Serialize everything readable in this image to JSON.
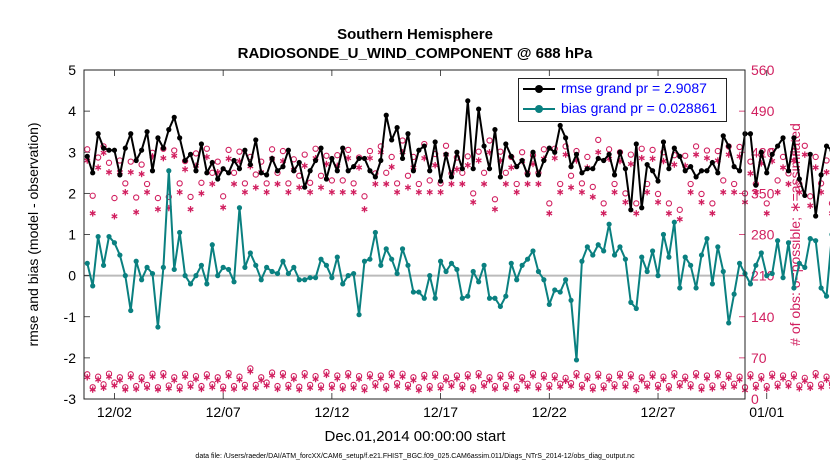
{
  "chart_data": {
    "type": "line",
    "title": "Southern Hemisphere",
    "subtitle": "RADIOSONDE_U_WIND_COMPONENT @ 688 hPa",
    "xlabel": "Dec.01,2014 00:00:00 start",
    "ylabel_left": "rmse and bias (model - observation)",
    "ylabel_right": "# of obs: o=possible; ∗=assimilated",
    "footnote": "data file: /Users/raeder/DAI/ATM_forcXX/CAM6_setup/f.e21.FHIST_BGC.f09_025.CAM6assim.011/Diags_NTrS_2014-12/obs_diag_output.nc",
    "xticks": [
      "12/02",
      "12/07",
      "12/12",
      "12/17",
      "12/22",
      "12/27",
      "01/01"
    ],
    "xlim_days": [
      0.6,
      31.0
    ],
    "ylim_left": [
      -3,
      5
    ],
    "yticks_left": [
      -3,
      -2,
      -1,
      0,
      1,
      2,
      3,
      4,
      5
    ],
    "ylim_right": [
      0,
      560
    ],
    "yticks_right": [
      0,
      70,
      140,
      210,
      280,
      350,
      420,
      490,
      560
    ],
    "step_days": 0.25,
    "start_day": 0.75,
    "colors": {
      "rmse": "#000000",
      "bias": "#0a8080",
      "obs": "#d11f5f",
      "zero": "#bbbbbb",
      "legend_text": "#0000ff"
    },
    "series": [
      {
        "name": "rmse grand pr = 2.9087",
        "values": [
          2.9,
          2.5,
          3.45,
          3.1,
          3.05,
          3.05,
          2.45,
          3.1,
          3.45,
          2.8,
          3.05,
          3.5,
          2.55,
          3.35,
          3.1,
          3.55,
          3.85,
          3.35,
          2.8,
          2.95,
          2.55,
          3.2,
          2.5,
          2.75,
          2.35,
          2.6,
          2.5,
          2.8,
          2.6,
          3.05,
          2.7,
          3.3,
          2.5,
          2.45,
          2.85,
          2.55,
          2.65,
          3.05,
          2.55,
          2.75,
          2.15,
          2.55,
          2.8,
          3.1,
          2.35,
          2.85,
          2.55,
          3.1,
          2.55,
          2.65,
          2.85,
          2.85,
          2.55,
          2.4,
          2.8,
          3.9,
          3.3,
          3.6,
          2.85,
          3.45,
          2.55,
          3.05,
          3.15,
          2.55,
          3.25,
          2.3,
          2.95,
          2.4,
          3.0,
          2.6,
          4.25,
          2.6,
          4.05,
          3.15,
          2.6,
          3.55,
          2.4,
          3.2,
          2.9,
          2.65,
          2.8,
          2.45,
          3.0,
          2.45,
          2.8,
          3.1,
          3.0,
          3.65,
          3.35,
          2.65,
          2.95,
          2.5,
          2.6,
          2.6,
          2.85,
          2.8,
          2.95,
          2.45,
          3.0,
          2.6,
          1.6,
          3.2,
          1.65,
          2.7,
          2.55,
          2.3,
          3.25,
          2.6,
          3.1,
          2.9,
          2.55,
          2.65,
          2.4,
          2.55,
          2.55,
          2.75,
          2.5,
          3.4,
          3.15,
          2.65,
          2.55,
          3.45,
          3.45,
          2.2,
          3.0,
          2.5,
          2.95,
          3.15,
          3.35,
          2.55,
          3.35,
          2.35,
          1.95,
          2.95,
          1.45,
          2.45,
          3.15,
          3.05,
          2.2,
          2.55,
          2.9,
          2.45,
          2.55,
          2.25,
          2.8,
          2.45,
          2.65,
          2.45,
          2.2,
          2.85,
          2.65,
          2.8,
          3.25,
          2.4,
          3.6,
          2.9,
          2.5,
          2.9,
          2.15
        ]
      },
      {
        "name": "bias grand pr = 0.028861",
        "values": [
          0.3,
          -0.25,
          0.95,
          0.25,
          0.95,
          0.8,
          0.5,
          0.0,
          -0.85,
          0.35,
          -0.1,
          0.2,
          0.05,
          -1.25,
          0.2,
          2.55,
          0.15,
          1.05,
          0.0,
          -0.2,
          0.0,
          0.25,
          -0.2,
          0.75,
          0.0,
          0.2,
          0.15,
          -0.15,
          1.65,
          0.2,
          0.55,
          0.25,
          -0.1,
          0.2,
          0.1,
          0.05,
          0.35,
          0.05,
          0.2,
          -0.1,
          -0.1,
          -0.05,
          -0.05,
          0.4,
          0.25,
          -0.05,
          0.45,
          -0.2,
          0.0,
          0.05,
          -0.95,
          0.35,
          0.4,
          1.05,
          0.25,
          0.65,
          0.4,
          0.05,
          0.65,
          0.25,
          -0.4,
          -0.4,
          -0.55,
          0.0,
          -0.55,
          0.35,
          0.1,
          0.3,
          0.15,
          -0.55,
          -0.5,
          0.1,
          -0.15,
          0.25,
          -0.55,
          -0.55,
          -0.75,
          -0.5,
          0.3,
          -0.1,
          0.25,
          0.4,
          0.6,
          0.1,
          -0.1,
          -0.7,
          -0.35,
          -0.4,
          -0.1,
          -0.6,
          -2.05,
          0.35,
          0.7,
          0.5,
          0.75,
          0.6,
          1.25,
          0.5,
          0.7,
          0.4,
          -0.65,
          -0.8,
          0.45,
          0.1,
          0.6,
          0.0,
          1.0,
          0.45,
          1.3,
          -0.3,
          0.45,
          0.25,
          -0.3,
          0.5,
          0.9,
          -0.2,
          0.7,
          0.1,
          -1.15,
          -0.45,
          0.3,
          0.05,
          -0.2,
          0.25,
          0.55,
          0.0,
          0.05,
          0.85,
          -0.05,
          0.8,
          -0.3,
          0.3,
          0.2,
          0.9,
          0.85,
          -0.3,
          -0.5,
          1.0,
          0.15,
          0.2,
          0.1,
          -0.65,
          0.05,
          0.05,
          0.15,
          0.95,
          0.95,
          -0.3,
          0.1,
          0.2,
          -0.3,
          -0.05,
          0.85,
          0.05,
          -0.1,
          0.15,
          0.2,
          -0.45,
          -1.8,
          0.0,
          0.65,
          -1.6
        ]
      },
      {
        "name": "possible obs",
        "values": [
          425,
          346,
          411,
          430,
          402,
          342,
          406,
          367,
          404,
          343,
          399,
          366,
          419,
          342,
          426,
          344,
          423,
          367,
          405,
          344,
          418,
          368,
          426,
          385,
          404,
          345,
          424,
          385,
          421,
          367,
          412,
          382,
          404,
          367,
          425,
          385,
          422,
          367,
          408,
          380,
          416,
          368,
          426,
          380,
          414,
          372,
          415,
          372,
          424,
          367,
          411,
          345,
          422,
          384,
          430,
          385,
          412,
          367,
          440,
          380,
          412,
          366,
          434,
          372,
          417,
          367,
          431,
          384,
          411,
          385,
          413,
          350,
          421,
          385,
          440,
          340,
          421,
          385,
          412,
          366,
          420,
          384,
          415,
          385,
          425,
          333,
          426,
          366,
          430,
          380,
          422,
          367,
          412,
          361,
          441,
          333,
          425,
          366,
          420,
          350,
          416,
          333,
          426,
          366,
          424,
          349,
          420,
          333,
          415,
          322,
          414,
          366,
          430,
          349,
          423,
          333,
          422,
          372,
          430,
          366,
          429,
          350,
          404,
          366,
          416,
          333,
          422,
          372,
          412,
          384,
          421,
          366,
          431,
          345,
          412,
          367,
          406,
          333,
          425,
          350,
          418,
          330,
          411,
          367,
          425,
          384,
          404,
          366,
          420,
          350,
          412,
          384,
          404,
          350,
          416,
          368,
          401,
          286
        ]
      },
      {
        "name": "assimilated obs",
        "values": [
          406,
          316,
          394,
          419,
          386,
          311,
          386,
          352,
          386,
          318,
          383,
          352,
          413,
          323,
          410,
          325,
          414,
          352,
          391,
          323,
          397,
          350,
          412,
          366,
          386,
          326,
          409,
          366,
          405,
          352,
          396,
          360,
          386,
          352,
          409,
          366,
          405,
          352,
          390,
          360,
          397,
          352,
          410,
          360,
          400,
          352,
          397,
          352,
          410,
          352,
          394,
          323,
          410,
          366,
          420,
          366,
          395,
          352,
          420,
          360,
          394,
          352,
          410,
          352,
          398,
          352,
          416,
          366,
          391,
          366,
          398,
          335,
          406,
          366,
          420,
          323,
          406,
          366,
          394,
          352,
          405,
          366,
          400,
          366,
          409,
          316,
          410,
          352,
          416,
          360,
          406,
          352,
          394,
          344,
          420,
          316,
          409,
          352,
          405,
          335,
          400,
          316,
          410,
          352,
          409,
          335,
          405,
          316,
          399,
          306,
          397,
          352,
          416,
          335,
          410,
          316,
          406,
          352,
          416,
          352,
          413,
          335,
          384,
          352,
          401,
          316,
          405,
          352,
          394,
          366,
          406,
          352,
          416,
          329,
          394,
          352,
          386,
          316,
          409,
          335,
          400,
          313,
          394,
          352,
          409,
          366,
          386,
          352,
          405,
          335,
          394,
          366,
          384,
          335,
          400,
          352,
          386,
          276
        ]
      },
      {
        "name": "possible obs (lower)",
        "values": [
          42,
          20,
          38,
          25,
          43,
          28,
          37,
          20,
          42,
          22,
          37,
          24,
          43,
          20,
          44,
          23,
          37,
          21,
          43,
          26,
          39,
          22,
          42,
          25,
          37,
          21,
          44,
          22,
          38,
          24,
          52,
          24,
          37,
          28,
          45,
          22,
          44,
          24,
          39,
          21,
          44,
          24,
          39,
          23,
          46,
          24,
          40,
          22,
          44,
          24,
          39,
          20,
          42,
          27,
          40,
          22,
          44,
          27,
          43,
          24,
          37,
          20,
          41,
          22,
          43,
          23,
          37,
          27,
          40,
          24,
          42,
          20,
          44,
          27,
          37,
          22,
          41,
          24,
          42,
          21,
          37,
          26,
          44,
          23,
          41,
          24,
          40,
          26,
          36,
          27,
          44,
          24,
          39,
          21,
          43,
          23,
          38,
          25,
          43,
          26,
          42,
          20,
          37,
          26,
          43,
          24,
          38,
          22,
          44,
          27,
          38,
          25,
          44,
          21,
          40,
          23,
          44,
          25,
          41,
          26,
          38,
          20,
          42,
          24,
          39,
          22,
          43,
          26,
          40,
          27,
          42,
          23,
          36,
          24,
          44,
          25,
          38,
          26,
          40,
          24,
          37,
          21,
          44,
          26,
          41,
          20,
          42,
          23,
          37,
          22,
          43,
          26,
          40,
          24,
          44,
          21,
          39,
          22
        ]
      },
      {
        "name": "assimilated obs (lower)",
        "values": [
          37,
          16,
          33,
          19,
          38,
          23,
          32,
          16,
          37,
          17,
          32,
          19,
          38,
          16,
          39,
          18,
          32,
          16,
          38,
          21,
          34,
          17,
          37,
          20,
          32,
          16,
          39,
          17,
          33,
          19,
          47,
          19,
          32,
          23,
          40,
          17,
          39,
          19,
          34,
          16,
          39,
          19,
          34,
          18,
          41,
          19,
          35,
          17,
          39,
          19,
          34,
          15,
          37,
          22,
          35,
          17,
          39,
          22,
          38,
          19,
          32,
          15,
          36,
          17,
          38,
          18,
          32,
          22,
          35,
          19,
          37,
          15,
          39,
          22,
          32,
          17,
          36,
          19,
          37,
          16,
          32,
          21,
          39,
          18,
          36,
          19,
          35,
          21,
          31,
          22,
          39,
          19,
          34,
          16,
          38,
          18,
          33,
          20,
          38,
          21,
          37,
          15,
          32,
          21,
          38,
          19,
          33,
          17,
          39,
          22,
          33,
          20,
          39,
          16,
          35,
          18,
          39,
          20,
          36,
          21,
          33,
          15,
          37,
          19,
          34,
          17,
          38,
          21,
          35,
          22,
          37,
          18,
          31,
          19,
          39,
          20,
          33,
          21,
          35,
          19,
          32,
          16,
          39,
          21,
          36,
          15,
          37,
          18,
          32,
          17,
          38,
          21,
          35,
          19,
          39,
          16,
          34,
          17
        ]
      }
    ]
  }
}
